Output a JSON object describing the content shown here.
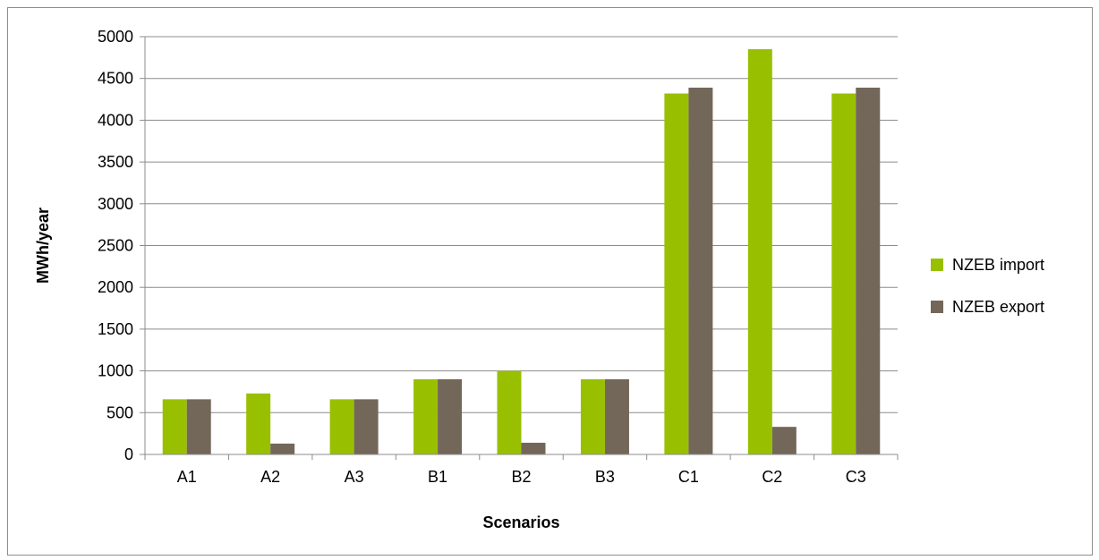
{
  "chart_data": {
    "type": "bar",
    "title": "",
    "xlabel": "Scenarios",
    "ylabel": "MWh/year",
    "categories": [
      "A1",
      "A2",
      "A3",
      "B1",
      "B2",
      "B3",
      "C1",
      "C2",
      "C3"
    ],
    "series": [
      {
        "name": "NZEB import",
        "color": "#99c000",
        "values": [
          660,
          730,
          660,
          900,
          1000,
          900,
          4320,
          4850,
          4320
        ]
      },
      {
        "name": "NZEB export",
        "color": "#736759",
        "values": [
          660,
          130,
          660,
          900,
          140,
          900,
          4390,
          330,
          4390
        ]
      }
    ],
    "ylim": [
      0,
      5000
    ],
    "yticks": [
      "0",
      "500",
      "1000",
      "1500",
      "2000",
      "2500",
      "3000",
      "3500",
      "4000",
      "4500",
      "5000"
    ],
    "grid": true,
    "legend_position": "right"
  }
}
